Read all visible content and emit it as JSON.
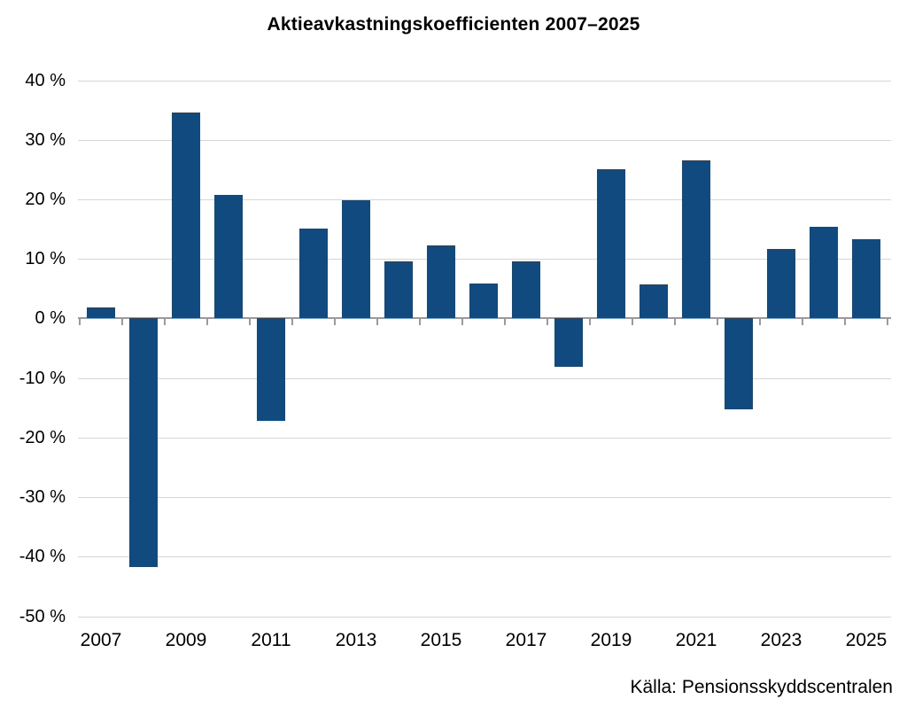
{
  "title": "Aktieavkastningskoefficienten 2007–2025",
  "source": "Källa: Pensionsskyddscentralen",
  "chart_data": {
    "type": "bar",
    "title": "Aktieavkastningskoefficienten 2007–2025",
    "categories": [
      "2007",
      "2008",
      "2009",
      "2010",
      "2011",
      "2012",
      "2013",
      "2014",
      "2015",
      "2016",
      "2017",
      "2018",
      "2019",
      "2020",
      "2021",
      "2022",
      "2023",
      "2024",
      "2025"
    ],
    "values": [
      1.9,
      -41.8,
      34.5,
      20.7,
      -17.2,
      15.1,
      19.9,
      9.6,
      12.3,
      5.8,
      9.6,
      -8.2,
      25.1,
      5.7,
      26.6,
      -15.3,
      11.7,
      15.4,
      13.3
    ],
    "x_tick_labels": [
      "2007",
      "2009",
      "2011",
      "2013",
      "2015",
      "2017",
      "2019",
      "2021",
      "2023",
      "2025"
    ],
    "y_ticks": [
      {
        "label": "40 %",
        "value": 40
      },
      {
        "label": "30 %",
        "value": 30
      },
      {
        "label": "20 %",
        "value": 20
      },
      {
        "label": "10 %",
        "value": 10
      },
      {
        "label": "0 %",
        "value": 0
      },
      {
        "label": "-10 %",
        "value": -10
      },
      {
        "label": "-20 %",
        "value": -20
      },
      {
        "label": "-30 %",
        "value": -30
      },
      {
        "label": "-40 %",
        "value": -40
      },
      {
        "label": "-50 %",
        "value": -50
      }
    ],
    "ylim": [
      -50,
      40
    ],
    "xlabel": "",
    "ylabel": "",
    "grid": true,
    "legend": false,
    "colors": {
      "bar": "#114A7E",
      "gridline": "#D6D6D6",
      "axis_line": "#9A9A9A",
      "text": "#000000",
      "background": "#FFFFFF"
    }
  }
}
